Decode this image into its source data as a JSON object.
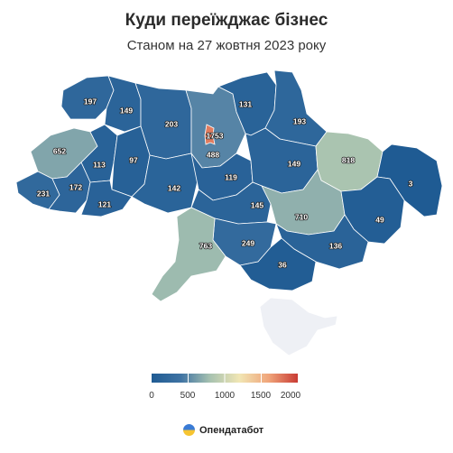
{
  "title": "Куди переїжджає бізнес",
  "subtitle": "Станом на 27 жовтня 2023 року",
  "regions": [
    {
      "id": "volyn",
      "value": "197",
      "num": 197
    },
    {
      "id": "rivne",
      "value": "149",
      "num": 149
    },
    {
      "id": "zhytomyr",
      "value": "203",
      "num": 203
    },
    {
      "id": "kyiv-oblast",
      "value": "488",
      "num": 488
    },
    {
      "id": "kyiv-city",
      "value": "1753",
      "num": 1753
    },
    {
      "id": "chernihiv",
      "value": "131",
      "num": 131
    },
    {
      "id": "sumy",
      "value": "193",
      "num": 193
    },
    {
      "id": "lviv",
      "value": "652",
      "num": 652
    },
    {
      "id": "ternopil",
      "value": "113",
      "num": 113
    },
    {
      "id": "khmelnytskyi",
      "value": "97",
      "num": 97
    },
    {
      "id": "vinnytsia",
      "value": "142",
      "num": 142
    },
    {
      "id": "cherkasy",
      "value": "119",
      "num": 119
    },
    {
      "id": "poltava",
      "value": "149",
      "num": 149
    },
    {
      "id": "kharkiv",
      "value": "818",
      "num": 818
    },
    {
      "id": "luhansk",
      "value": "3",
      "num": 3
    },
    {
      "id": "zakarpattia",
      "value": "231",
      "num": 231
    },
    {
      "id": "ivano-frankivsk",
      "value": "172",
      "num": 172
    },
    {
      "id": "chernivtsi",
      "value": "121",
      "num": 121
    },
    {
      "id": "kirovohrad",
      "value": "145",
      "num": 145
    },
    {
      "id": "dnipro",
      "value": "710",
      "num": 710
    },
    {
      "id": "donetsk",
      "value": "49",
      "num": 49
    },
    {
      "id": "mykolaiv",
      "value": "249",
      "num": 249
    },
    {
      "id": "odesa",
      "value": "763",
      "num": 763
    },
    {
      "id": "zaporizhzhia",
      "value": "136",
      "num": 136
    },
    {
      "id": "kherson",
      "value": "36",
      "num": 36
    },
    {
      "id": "crimea",
      "value": "",
      "num": null
    }
  ],
  "legend": {
    "ticks": [
      "0",
      "500",
      "1000",
      "1500",
      "2000"
    ],
    "range": [
      0,
      2000
    ],
    "colors": [
      "#1f5b93",
      "#3f73a3",
      "#a7c2b0",
      "#f1e6b4",
      "#f0a57a",
      "#c93b34"
    ]
  },
  "brand": {
    "name": "Опендатабот",
    "logo_icon": "opendatabot-logo-icon"
  }
}
